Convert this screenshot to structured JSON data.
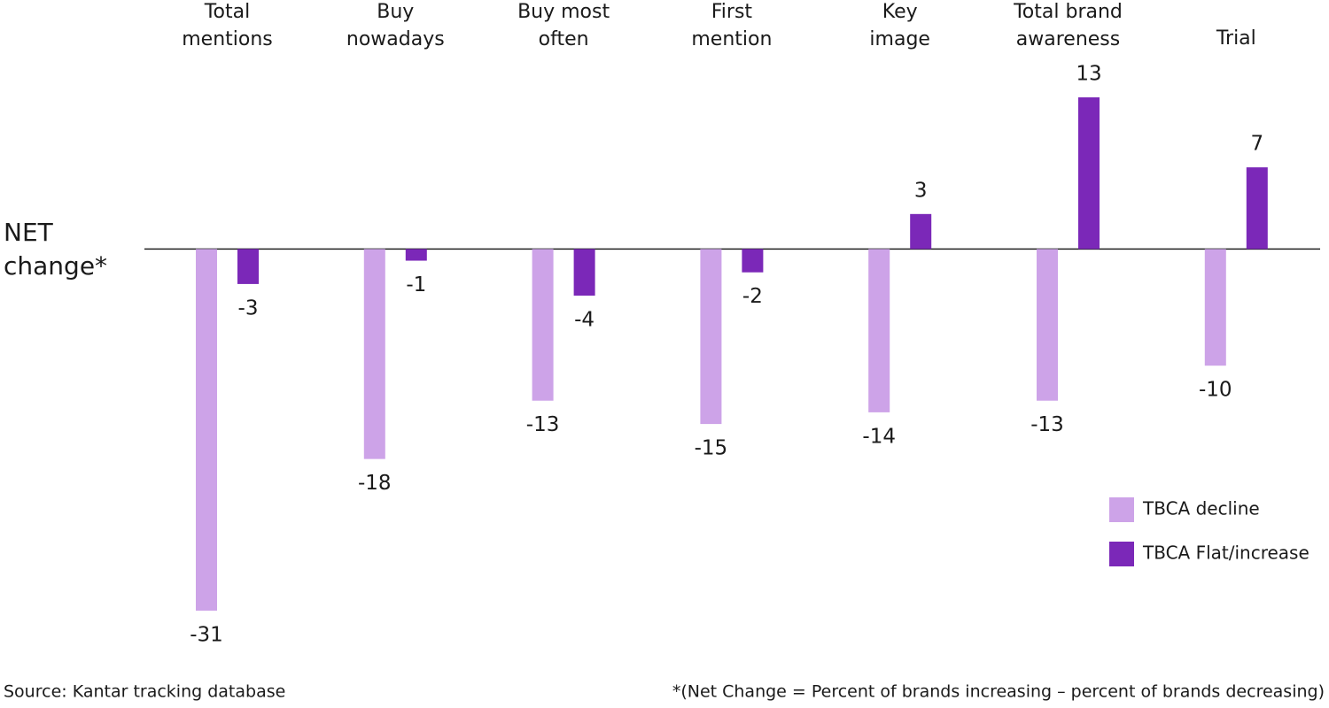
{
  "chart_data": {
    "type": "bar",
    "y_label": [
      "NET",
      "change*"
    ],
    "categories": [
      [
        "Total",
        "mentions"
      ],
      [
        "Buy",
        "nowadays"
      ],
      [
        "Buy most",
        "often"
      ],
      [
        "First",
        "mention"
      ],
      [
        "Key",
        "image"
      ],
      [
        "Total brand",
        "awareness"
      ],
      [
        "Trial"
      ]
    ],
    "series": [
      {
        "name": "TBCA decline",
        "color": "#cda3e8",
        "values": [
          -31,
          -18,
          -13,
          -15,
          -14,
          -13,
          -10
        ]
      },
      {
        "name": "TBCA Flat/increase",
        "color": "#7b28b8",
        "values": [
          -3,
          -1,
          -4,
          -2,
          3,
          13,
          7
        ]
      }
    ],
    "ylim": [
      -31,
      13
    ],
    "legend": "lower right",
    "source": "Source: Kantar tracking database",
    "footnote": "*(Net Change = Percent of brands increasing – percent of brands decreasing)"
  }
}
